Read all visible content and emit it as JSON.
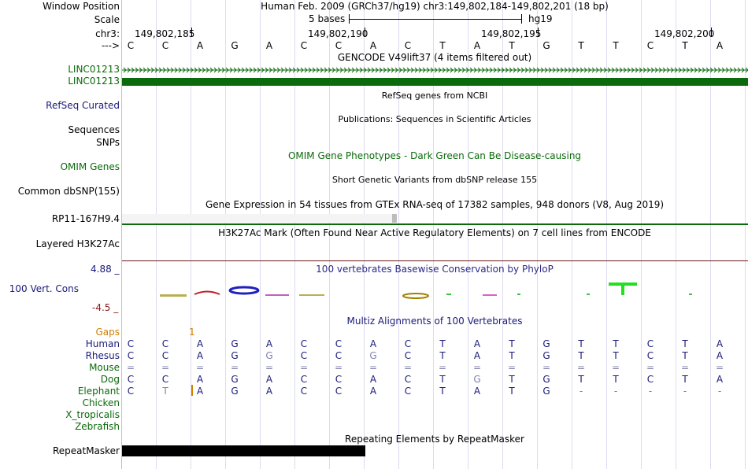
{
  "header": {
    "window_position_label": "Window Position",
    "scale_label": "Scale",
    "chrom_label": "chr3:",
    "strand_label": "--->",
    "assembly_text": "Human Feb. 2009 (GRCh37/hg19)   chr3:149,802,184-149,802,201 (18 bp)",
    "scale_text": "5 bases",
    "scale_db": "hg19",
    "positions": [
      "149,802,185",
      "149,802,190",
      "149,802,195",
      "149,802,200"
    ]
  },
  "sequence": [
    "C",
    "C",
    "A",
    "G",
    "A",
    "C",
    "C",
    "A",
    "C",
    "T",
    "A",
    "T",
    "G",
    "T",
    "T",
    "C",
    "T",
    "A"
  ],
  "tracks": {
    "gencode_title": "GENCODE V49lift37 (4 items filtered out)",
    "gene1_label": "LINC01213",
    "gene2_label": "LINC01213",
    "refseq_label": "RefSeq Curated",
    "refseq_title": "RefSeq genes from NCBI",
    "sequences_label": "Sequences",
    "pubs_title": "Publications: Sequences in Scientific Articles",
    "snps_label": "SNPs",
    "omim_title": "OMIM Gene Phenotypes - Dark Green Can Be Disease-causing",
    "omim_label": "OMIM Genes",
    "dbsnp_title": "Short Genetic Variants from dbSNP release 155",
    "dbsnp_label": "Common dbSNP(155)",
    "gtex_title": "Gene Expression in 54 tissues from GTEx RNA-seq of 17382 samples, 948 donors (V8, Aug 2019)",
    "gtex_label": "RP11-167H9.4",
    "h3k27_title": "H3K27Ac Mark (Often Found Near Active Regulatory Elements) on 7 cell lines from ENCODE",
    "h3k27_label": "Layered H3K27Ac",
    "phylop_title": "100 vertebrates Basewise Conservation by PhyloP",
    "phylop_label": "100 Vert. Cons",
    "phylop_max": "4.88 _",
    "phylop_min": "-4.5 _",
    "multiz_title": "Multiz Alignments of 100 Vertebrates",
    "gaps_label": "Gaps",
    "gaps_mark": "1",
    "repeat_title": "Repeating Elements by RepeatMasker",
    "repeat_label": "RepeatMasker"
  },
  "alignment": [
    {
      "species": "Human",
      "bases": [
        "C",
        "C",
        "A",
        "G",
        "A",
        "C",
        "C",
        "A",
        "C",
        "T",
        "A",
        "T",
        "G",
        "T",
        "T",
        "C",
        "T",
        "A"
      ]
    },
    {
      "species": "Rhesus",
      "bases": [
        "C",
        "C",
        "A",
        "G",
        "G",
        "C",
        "C",
        "G",
        "C",
        "T",
        "A",
        "T",
        "G",
        "T",
        "T",
        "C",
        "T",
        "A"
      ]
    },
    {
      "species": "Mouse",
      "bases": [
        "=",
        "=",
        "=",
        "=",
        "=",
        "=",
        "=",
        "=",
        "=",
        "=",
        "=",
        "=",
        "=",
        "=",
        "=",
        "=",
        "=",
        "="
      ]
    },
    {
      "species": "Dog",
      "bases": [
        "C",
        "C",
        "A",
        "G",
        "A",
        "C",
        "C",
        "A",
        "C",
        "T",
        "G",
        "T",
        "G",
        "T",
        "T",
        "C",
        "T",
        "A"
      ]
    },
    {
      "species": "Elephant",
      "bases": [
        "C",
        "T",
        "A",
        "G",
        "A",
        "C",
        "C",
        "A",
        "C",
        "T",
        "A",
        "T",
        "G",
        "-",
        "-",
        "-",
        "-",
        "-"
      ]
    },
    {
      "species": "Chicken",
      "bases": []
    },
    {
      "species": "X_tropicalis",
      "bases": []
    },
    {
      "species": "Zebrafish",
      "bases": []
    }
  ],
  "colors": {
    "gene_green": "#0b6a0b",
    "label_navy": "#1a1a7a",
    "gap_orange": "#d08000",
    "phylop_red": "#8b1a1a",
    "diff_gray": "#8080b0"
  }
}
